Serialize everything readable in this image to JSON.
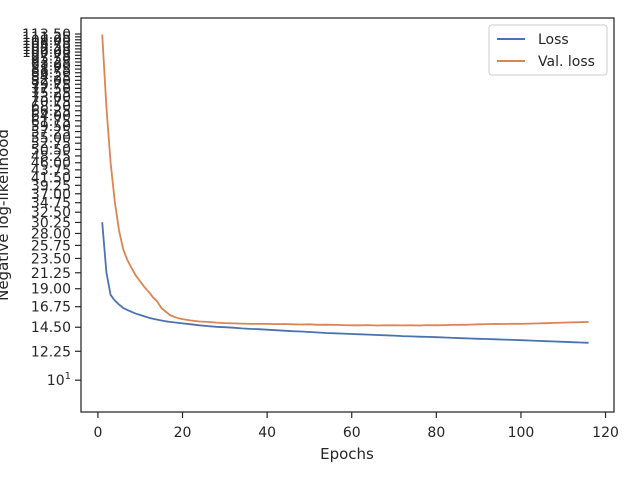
{
  "chart_data": {
    "type": "line",
    "xlabel": "Epochs",
    "ylabel": "Negative log-likelihood",
    "yscale": "log",
    "xlim": [
      -4,
      122
    ],
    "ylim": [
      8.0,
      127
    ],
    "grid": false,
    "legend_position": "top-right",
    "x_ticks": [
      0,
      20,
      40,
      60,
      80,
      100,
      120
    ],
    "y_ticks": [
      {
        "value": 10,
        "label": "10",
        "exponent": "1"
      },
      {
        "value": 12.25,
        "label": "12.25"
      },
      {
        "value": 14.5,
        "label": "14.50"
      },
      {
        "value": 16.75,
        "label": "16.75"
      },
      {
        "value": 19.0,
        "label": "19.00"
      },
      {
        "value": 21.25,
        "label": "21.25"
      },
      {
        "value": 23.5,
        "label": "23.50"
      },
      {
        "value": 25.75,
        "label": "25.75"
      },
      {
        "value": 28.0,
        "label": "28.00"
      },
      {
        "value": 30.25,
        "label": "30.25"
      },
      {
        "value": 32.5,
        "label": "32.50"
      },
      {
        "value": 34.75,
        "label": "34.75"
      },
      {
        "value": 37.0,
        "label": "37.00"
      },
      {
        "value": 39.25,
        "label": "39.25"
      },
      {
        "value": 41.5,
        "label": "41.50"
      },
      {
        "value": 43.75,
        "label": "43.75"
      },
      {
        "value": 46.0,
        "label": "46.00"
      },
      {
        "value": 48.25,
        "label": "48.25"
      },
      {
        "value": 50.5,
        "label": "50.50"
      },
      {
        "value": 52.75,
        "label": "52.75"
      },
      {
        "value": 55.0,
        "label": "55.00"
      },
      {
        "value": 57.25,
        "label": "57.25"
      },
      {
        "value": 59.5,
        "label": "59.50"
      },
      {
        "value": 61.75,
        "label": "61.75"
      },
      {
        "value": 64.0,
        "label": "64.00"
      },
      {
        "value": 66.25,
        "label": "66.25"
      },
      {
        "value": 68.5,
        "label": "68.50"
      },
      {
        "value": 70.75,
        "label": "70.75"
      },
      {
        "value": 73.0,
        "label": "73.00"
      },
      {
        "value": 75.25,
        "label": "75.25"
      },
      {
        "value": 77.5,
        "label": "77.50"
      },
      {
        "value": 79.75,
        "label": "79.75"
      },
      {
        "value": 82.0,
        "label": "82.00"
      },
      {
        "value": 84.25,
        "label": "84.25"
      },
      {
        "value": 86.5,
        "label": "86.50"
      },
      {
        "value": 88.75,
        "label": "88.75"
      },
      {
        "value": 91.0,
        "label": "91.00"
      },
      {
        "value": 93.25,
        "label": "93.25"
      },
      {
        "value": 95.5,
        "label": "95.50"
      },
      {
        "value": 97.75,
        "label": "97.75"
      },
      {
        "value": 100.0,
        "label": "100.00"
      },
      {
        "value": 102.25,
        "label": "102.25"
      },
      {
        "value": 104.5,
        "label": "104.50"
      },
      {
        "value": 106.75,
        "label": "106.75"
      },
      {
        "value": 109.0,
        "label": "109.00"
      },
      {
        "value": 111.25,
        "label": "111.25"
      },
      {
        "value": 113.5,
        "label": "113.50"
      }
    ],
    "series": [
      {
        "name": "Loss",
        "color": "#4c72b0",
        "x": [
          1,
          2,
          3,
          4,
          5,
          6,
          7,
          8,
          9,
          10,
          11,
          12,
          13,
          14,
          15,
          16,
          17,
          18,
          19,
          20,
          22,
          24,
          26,
          28,
          30,
          32,
          34,
          36,
          38,
          40,
          42,
          44,
          46,
          48,
          50,
          52,
          54,
          56,
          58,
          60,
          62,
          64,
          66,
          68,
          70,
          72,
          74,
          76,
          78,
          80,
          82,
          84,
          86,
          88,
          90,
          92,
          94,
          96,
          98,
          100,
          102,
          104,
          106,
          108,
          110,
          112,
          114,
          116
        ],
        "y": [
          30.3,
          21.3,
          18.2,
          17.5,
          17.0,
          16.6,
          16.35,
          16.15,
          15.95,
          15.8,
          15.65,
          15.5,
          15.4,
          15.3,
          15.2,
          15.12,
          15.05,
          15.0,
          14.95,
          14.9,
          14.8,
          14.7,
          14.62,
          14.55,
          14.5,
          14.45,
          14.38,
          14.33,
          14.3,
          14.25,
          14.2,
          14.15,
          14.1,
          14.07,
          14.02,
          13.98,
          13.93,
          13.9,
          13.87,
          13.83,
          13.8,
          13.77,
          13.73,
          13.7,
          13.67,
          13.63,
          13.6,
          13.57,
          13.55,
          13.52,
          13.49,
          13.46,
          13.43,
          13.4,
          13.37,
          13.35,
          13.32,
          13.3,
          13.27,
          13.24,
          13.21,
          13.18,
          13.15,
          13.12,
          13.09,
          13.06,
          13.03,
          13.0
        ]
      },
      {
        "name": "Val. loss",
        "color": "#dd8452",
        "x": [
          1,
          2,
          3,
          4,
          5,
          6,
          7,
          8,
          9,
          10,
          11,
          12,
          13,
          14,
          15,
          16,
          17,
          18,
          19,
          20,
          22,
          24,
          26,
          28,
          30,
          32,
          34,
          36,
          38,
          40,
          42,
          44,
          46,
          48,
          50,
          52,
          54,
          56,
          58,
          60,
          62,
          64,
          66,
          68,
          70,
          72,
          74,
          76,
          78,
          80,
          82,
          84,
          86,
          88,
          90,
          92,
          94,
          96,
          98,
          100,
          102,
          104,
          106,
          108,
          110,
          112,
          114,
          116
        ],
        "y": [
          113.0,
          68.0,
          46.0,
          35.0,
          28.5,
          25.0,
          23.2,
          21.9,
          20.8,
          20.0,
          19.2,
          18.6,
          17.9,
          17.4,
          16.6,
          16.2,
          15.8,
          15.6,
          15.45,
          15.35,
          15.2,
          15.1,
          15.05,
          14.98,
          14.93,
          14.9,
          14.88,
          14.85,
          14.84,
          14.85,
          14.82,
          14.83,
          14.8,
          14.78,
          14.8,
          14.75,
          14.76,
          14.74,
          14.72,
          14.7,
          14.7,
          14.72,
          14.68,
          14.7,
          14.7,
          14.69,
          14.7,
          14.68,
          14.72,
          14.7,
          14.72,
          14.74,
          14.75,
          14.77,
          14.8,
          14.82,
          14.85,
          14.83,
          14.86,
          14.85,
          14.88,
          14.9,
          14.92,
          14.95,
          14.98,
          15.0,
          15.02,
          15.05
        ]
      }
    ]
  }
}
